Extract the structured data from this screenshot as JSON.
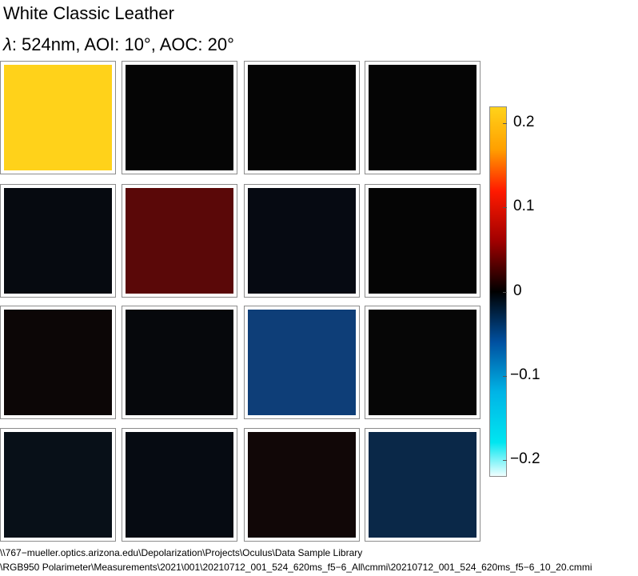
{
  "title": "White Classic Leather",
  "subtitle": {
    "lambda": "λ",
    "rest": ": 524nm, AOI: 10°, AOC: 20°"
  },
  "chart_data": {
    "type": "heatmap",
    "description_rows": 4,
    "description_cols": 4,
    "cells": [
      {
        "row": 1,
        "col": 1,
        "value": 0.22,
        "color": "#ffd21a"
      },
      {
        "row": 1,
        "col": 2,
        "value": 0.0,
        "color": "#050505"
      },
      {
        "row": 1,
        "col": 3,
        "value": 0.0,
        "color": "#050505"
      },
      {
        "row": 1,
        "col": 4,
        "value": 0.0,
        "color": "#050505"
      },
      {
        "row": 2,
        "col": 1,
        "value": -0.005,
        "color": "#060a10"
      },
      {
        "row": 2,
        "col": 2,
        "value": 0.04,
        "color": "#5a0808"
      },
      {
        "row": 2,
        "col": 3,
        "value": -0.005,
        "color": "#060a12"
      },
      {
        "row": 2,
        "col": 4,
        "value": 0.0,
        "color": "#050505"
      },
      {
        "row": 3,
        "col": 1,
        "value": 0.003,
        "color": "#0c0606"
      },
      {
        "row": 3,
        "col": 2,
        "value": -0.003,
        "color": "#06080c"
      },
      {
        "row": 3,
        "col": 3,
        "value": -0.06,
        "color": "#0e3e78"
      },
      {
        "row": 3,
        "col": 4,
        "value": 0.0,
        "color": "#060606"
      },
      {
        "row": 4,
        "col": 1,
        "value": -0.006,
        "color": "#081018"
      },
      {
        "row": 4,
        "col": 2,
        "value": -0.004,
        "color": "#060b12"
      },
      {
        "row": 4,
        "col": 3,
        "value": 0.004,
        "color": "#110707"
      },
      {
        "row": 4,
        "col": 4,
        "value": -0.04,
        "color": "#0a2848"
      }
    ],
    "colorbar": {
      "min": -0.22,
      "max": 0.22,
      "ticks": [
        {
          "value": 0.2,
          "label": "0.2"
        },
        {
          "value": 0.1,
          "label": "0.1"
        },
        {
          "value": 0,
          "label": "0"
        },
        {
          "value": -0.1,
          "label": "−0.1"
        },
        {
          "value": -0.2,
          "label": "−0.2"
        }
      ],
      "gradient": [
        {
          "value": 0.22,
          "color": "#ffd21a"
        },
        {
          "value": 0.17,
          "color": "#ffa000"
        },
        {
          "value": 0.12,
          "color": "#ff1a00"
        },
        {
          "value": 0.06,
          "color": "#a00000"
        },
        {
          "value": 0.0,
          "color": "#000000"
        },
        {
          "value": -0.06,
          "color": "#0050a0"
        },
        {
          "value": -0.12,
          "color": "#00b4e6"
        },
        {
          "value": -0.18,
          "color": "#00e6f0"
        },
        {
          "value": -0.22,
          "color": "#f0ffff"
        }
      ]
    }
  },
  "footer": {
    "line1": "\\\\767−mueller.optics.arizona.edu\\Depolarization\\Projects\\Oculus\\Data Sample Library",
    "line2": "\\RGB950 Polarimeter\\Measurements\\2021\\001\\20210712_001_524_620ms_f5−6_All\\cmmi\\20210712_001_524_620ms_f5−6_10_20.cmmi"
  }
}
